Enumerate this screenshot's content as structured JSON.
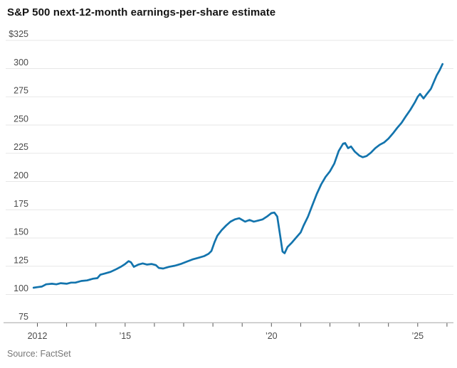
{
  "title": "S&P 500 next-12-month earnings-per-share estimate",
  "source": "Source: FactSet",
  "chart_data": {
    "type": "line",
    "title": "S&P 500 next-12-month earnings-per-share estimate",
    "xlabel": "",
    "ylabel": "",
    "ylim": [
      75,
      325
    ],
    "xlim": [
      2011.83,
      2026.3
    ],
    "grid": "horizontal",
    "legend": "none",
    "y_ticks": [
      75,
      100,
      125,
      150,
      175,
      200,
      225,
      250,
      275,
      300,
      325
    ],
    "y_tick_labels": [
      "75",
      "100",
      "125",
      "150",
      "175",
      "200",
      "225",
      "250",
      "275",
      "300",
      "$325"
    ],
    "x_ticks": [
      2012,
      2013,
      2014,
      2015,
      2016,
      2017,
      2018,
      2019,
      2020,
      2021,
      2022,
      2023,
      2024,
      2025,
      2026
    ],
    "x_tick_labels": {
      "2012": "2012",
      "2015": "’15",
      "2020": "’20",
      "2025": "’25"
    },
    "theme": {
      "line_color": "#1374ad",
      "grid_color": "#e7e7e7",
      "axis_color": "#a6a6a6",
      "tick_color": "#555555",
      "label_color": "#4a4a4a",
      "title_color": "#141414",
      "source_color": "#777777"
    },
    "series": [
      {
        "name": "S&P 500 next-12-month EPS estimate",
        "color": "#1374ad",
        "points": [
          [
            2011.87,
            106
          ],
          [
            2012.0,
            106.5
          ],
          [
            2012.15,
            107
          ],
          [
            2012.3,
            109
          ],
          [
            2012.5,
            109.5
          ],
          [
            2012.65,
            109
          ],
          [
            2012.8,
            110
          ],
          [
            2013.0,
            109.5
          ],
          [
            2013.15,
            110.5
          ],
          [
            2013.3,
            110.5
          ],
          [
            2013.5,
            112
          ],
          [
            2013.7,
            112.5
          ],
          [
            2013.9,
            114
          ],
          [
            2014.05,
            114.5
          ],
          [
            2014.15,
            117.5
          ],
          [
            2014.3,
            118.5
          ],
          [
            2014.5,
            120
          ],
          [
            2014.7,
            122.5
          ],
          [
            2014.85,
            124.5
          ],
          [
            2015.0,
            127
          ],
          [
            2015.12,
            129.5
          ],
          [
            2015.2,
            128.5
          ],
          [
            2015.3,
            124.5
          ],
          [
            2015.45,
            126.5
          ],
          [
            2015.6,
            127.5
          ],
          [
            2015.75,
            126.5
          ],
          [
            2015.9,
            127
          ],
          [
            2016.05,
            126
          ],
          [
            2016.15,
            123.5
          ],
          [
            2016.3,
            123
          ],
          [
            2016.5,
            124.5
          ],
          [
            2016.7,
            125.5
          ],
          [
            2016.9,
            127
          ],
          [
            2017.1,
            129
          ],
          [
            2017.3,
            131
          ],
          [
            2017.5,
            132.5
          ],
          [
            2017.7,
            134
          ],
          [
            2017.85,
            136
          ],
          [
            2017.95,
            138.5
          ],
          [
            2018.05,
            146
          ],
          [
            2018.15,
            152
          ],
          [
            2018.3,
            157
          ],
          [
            2018.45,
            161
          ],
          [
            2018.6,
            164.5
          ],
          [
            2018.75,
            166.5
          ],
          [
            2018.9,
            167.5
          ],
          [
            2019.0,
            166
          ],
          [
            2019.1,
            164.5
          ],
          [
            2019.25,
            166
          ],
          [
            2019.4,
            164.5
          ],
          [
            2019.55,
            165.5
          ],
          [
            2019.7,
            166.5
          ],
          [
            2019.85,
            169
          ],
          [
            2020.0,
            172
          ],
          [
            2020.1,
            172.5
          ],
          [
            2020.2,
            169
          ],
          [
            2020.3,
            152
          ],
          [
            2020.38,
            138
          ],
          [
            2020.45,
            136.5
          ],
          [
            2020.55,
            142
          ],
          [
            2020.7,
            146
          ],
          [
            2020.85,
            150.5
          ],
          [
            2021.0,
            155
          ],
          [
            2021.1,
            161
          ],
          [
            2021.25,
            169
          ],
          [
            2021.4,
            179
          ],
          [
            2021.55,
            189
          ],
          [
            2021.7,
            197.5
          ],
          [
            2021.85,
            204
          ],
          [
            2022.0,
            209
          ],
          [
            2022.15,
            216
          ],
          [
            2022.3,
            227
          ],
          [
            2022.45,
            233.5
          ],
          [
            2022.52,
            234
          ],
          [
            2022.62,
            229.5
          ],
          [
            2022.72,
            231
          ],
          [
            2022.85,
            226.5
          ],
          [
            2023.0,
            223
          ],
          [
            2023.12,
            221.5
          ],
          [
            2023.25,
            222.5
          ],
          [
            2023.4,
            225.5
          ],
          [
            2023.55,
            229.5
          ],
          [
            2023.7,
            232.5
          ],
          [
            2023.85,
            234.5
          ],
          [
            2024.0,
            238
          ],
          [
            2024.15,
            242.5
          ],
          [
            2024.3,
            247.5
          ],
          [
            2024.45,
            252
          ],
          [
            2024.6,
            258
          ],
          [
            2024.75,
            263.5
          ],
          [
            2024.9,
            270
          ],
          [
            2025.0,
            275
          ],
          [
            2025.08,
            277.5
          ],
          [
            2025.2,
            273.5
          ],
          [
            2025.3,
            277
          ],
          [
            2025.45,
            282
          ],
          [
            2025.55,
            288
          ],
          [
            2025.65,
            294
          ],
          [
            2025.75,
            298.5
          ],
          [
            2025.85,
            304
          ]
        ]
      }
    ]
  }
}
